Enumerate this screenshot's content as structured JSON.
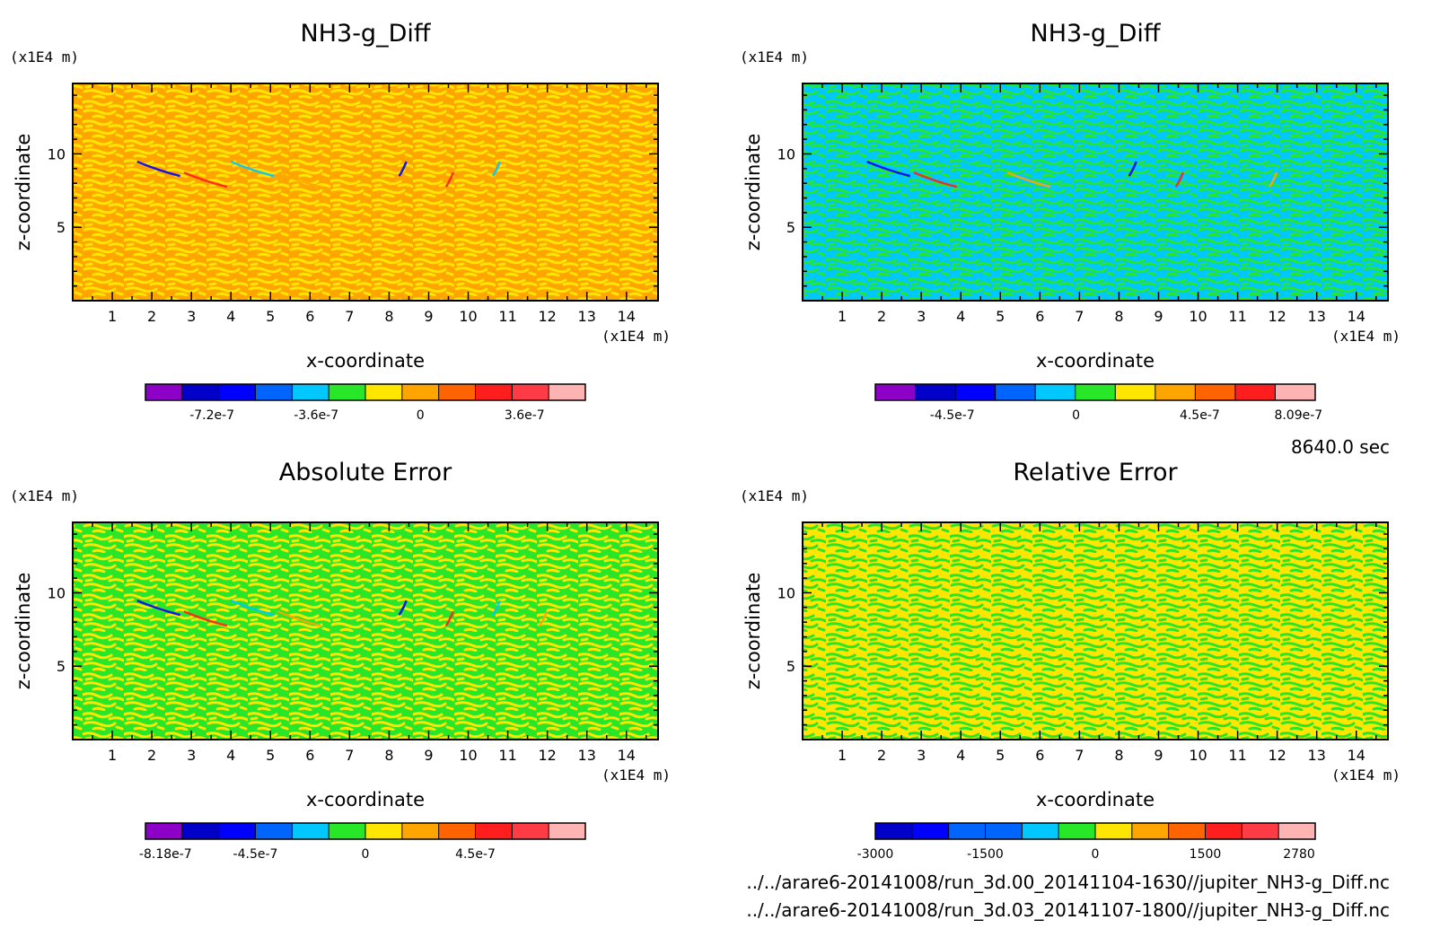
{
  "page": {
    "time_label": "8640.0 sec",
    "file_lines": [
      "../../arare6-20141008/run_3d.00_20141104-1630//jupiter_NH3-g_Diff.nc",
      "../../arare6-20141008/run_3d.03_20141107-1800//jupiter_NH3-g_Diff.nc"
    ]
  },
  "chart_data": [
    {
      "type": "heatmap",
      "title": "NH3-g_Diff",
      "xlabel": "x-coordinate",
      "ylabel": "z-coordinate",
      "x_unit": "(x1E4 m)",
      "y_unit": "(x1E4 m)",
      "x_ticks": [
        "1",
        "2",
        "3",
        "4",
        "5",
        "6",
        "7",
        "8",
        "9",
        "10",
        "11",
        "12",
        "13",
        "14"
      ],
      "y_ticks": [
        "5",
        "10"
      ],
      "xlim": [
        0,
        14.8
      ],
      "ylim": [
        0,
        14.8
      ],
      "dominant_color": "#ffa500",
      "secondary_color": "#ffe600",
      "colorbar": {
        "colors": [
          "#8c00c8",
          "#0000c8",
          "#0000ff",
          "#0064ff",
          "#00c8ff",
          "#28e628",
          "#ffe600",
          "#ffa500",
          "#ff6400",
          "#ff1e1e",
          "#ff3c46",
          "#ffb4b4"
        ],
        "labels": [
          "-7.2e-7",
          "-3.6e-7",
          "0",
          "3.6e-7"
        ],
        "label_positions": [
          -7.2e-07,
          -3.6e-07,
          0,
          3.6e-07
        ],
        "range": [
          -9.5e-07,
          5.7e-07
        ]
      }
    },
    {
      "type": "heatmap",
      "title": "NH3-g_Diff",
      "xlabel": "x-coordinate",
      "ylabel": "z-coordinate",
      "x_unit": "(x1E4 m)",
      "y_unit": "(x1E4 m)",
      "x_ticks": [
        "1",
        "2",
        "3",
        "4",
        "5",
        "6",
        "7",
        "8",
        "9",
        "10",
        "11",
        "12",
        "13",
        "14"
      ],
      "y_ticks": [
        "5",
        "10"
      ],
      "xlim": [
        0,
        14.8
      ],
      "ylim": [
        0,
        14.8
      ],
      "dominant_color": "#00c8ff",
      "secondary_color": "#28e628",
      "colorbar": {
        "colors": [
          "#8c00c8",
          "#0000c8",
          "#0000ff",
          "#0064ff",
          "#00c8ff",
          "#28e628",
          "#ffe600",
          "#ffa500",
          "#ff6400",
          "#ff1e1e",
          "#ffb4b4"
        ],
        "labels": [
          "-4.5e-7",
          "0",
          "4.5e-7",
          "8.09e-7"
        ],
        "label_positions": [
          -4.5e-07,
          0,
          4.5e-07,
          8.09e-07
        ],
        "range": [
          -7.3e-07,
          8.7e-07
        ]
      }
    },
    {
      "type": "heatmap",
      "title": "Absolute Error",
      "xlabel": "x-coordinate",
      "ylabel": "z-coordinate",
      "x_unit": "(x1E4 m)",
      "y_unit": "(x1E4 m)",
      "x_ticks": [
        "1",
        "2",
        "3",
        "4",
        "5",
        "6",
        "7",
        "8",
        "9",
        "10",
        "11",
        "12",
        "13",
        "14"
      ],
      "y_ticks": [
        "5",
        "10"
      ],
      "xlim": [
        0,
        14.8
      ],
      "ylim": [
        0,
        14.8
      ],
      "dominant_color": "#28e628",
      "secondary_color": "#ffe600",
      "colorbar": {
        "colors": [
          "#8c00c8",
          "#0000c8",
          "#0000ff",
          "#0064ff",
          "#00c8ff",
          "#28e628",
          "#ffe600",
          "#ffa500",
          "#ff6400",
          "#ff1e1e",
          "#ff3c46",
          "#ffb4b4"
        ],
        "labels": [
          "-8.18e-7",
          "-4.5e-7",
          "0",
          "4.5e-7"
        ],
        "label_positions": [
          -8.18e-07,
          -4.5e-07,
          0,
          4.5e-07
        ],
        "range": [
          -9e-07,
          9e-07
        ]
      }
    },
    {
      "type": "heatmap",
      "title": "Relative Error",
      "xlabel": "x-coordinate",
      "ylabel": "z-coordinate",
      "x_unit": "(x1E4 m)",
      "y_unit": "(x1E4 m)",
      "x_ticks": [
        "1",
        "2",
        "3",
        "4",
        "5",
        "6",
        "7",
        "8",
        "9",
        "10",
        "11",
        "12",
        "13",
        "14"
      ],
      "y_ticks": [
        "5",
        "10"
      ],
      "xlim": [
        0,
        14.8
      ],
      "ylim": [
        0,
        14.8
      ],
      "dominant_color": "#ffe600",
      "secondary_color": "#28e628",
      "colorbar": {
        "colors": [
          "#0000c8",
          "#0000ff",
          "#0064ff",
          "#0064ff",
          "#00c8ff",
          "#28e628",
          "#ffe600",
          "#ffa500",
          "#ff6400",
          "#ff1e1e",
          "#ff3c46",
          "#ffb4b4"
        ],
        "labels": [
          "-3000",
          "-1500",
          "0",
          "1500",
          "2780"
        ],
        "label_positions": [
          -3000,
          -1500,
          0,
          1500,
          2780
        ],
        "range": [
          -3000,
          3000
        ]
      }
    }
  ]
}
